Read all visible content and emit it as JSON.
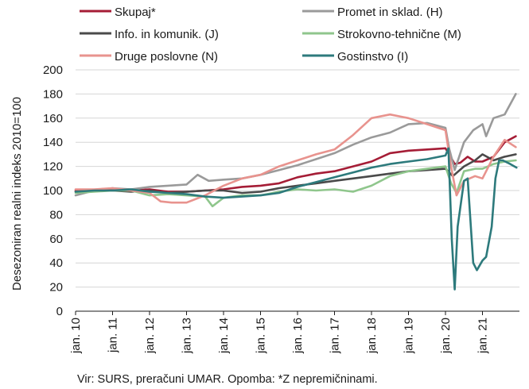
{
  "chart_data": {
    "type": "line",
    "ylabel": "Desezoniran realni indeks 2010=100",
    "ylim": [
      0,
      200
    ],
    "yticks": [
      "0",
      "20",
      "40",
      "60",
      "80",
      "100",
      "120",
      "140",
      "160",
      "180",
      "200"
    ],
    "xlim": [
      2010.0,
      2022.0
    ],
    "xtick_labels": [
      "jan. 10",
      "jan. 11",
      "jan. 12",
      "jan. 13",
      "jan. 14",
      "jan. 15",
      "jan. 16",
      "jan. 17",
      "jan. 18",
      "jan. 19",
      "jan. 20",
      "jan. 21"
    ],
    "grid": true,
    "legend_position": "top",
    "note": "Vir: SURS, preračuni UMAR. Opomba: *Z nepremičninami.",
    "series": [
      {
        "name": "Skupaj*",
        "color": "#a51d36",
        "x": [
          2010.0,
          2010.5,
          2011.0,
          2011.5,
          2012.0,
          2012.5,
          2013.0,
          2013.5,
          2014.0,
          2014.5,
          2015.0,
          2015.5,
          2016.0,
          2016.5,
          2017.0,
          2017.5,
          2018.0,
          2018.5,
          2019.0,
          2019.5,
          2020.0,
          2020.1,
          2020.25,
          2020.4,
          2020.6,
          2020.8,
          2021.0,
          2021.3,
          2021.6,
          2021.9
        ],
        "y": [
          100,
          100,
          101,
          100,
          101,
          99,
          99,
          100,
          101,
          103,
          104,
          106,
          111,
          114,
          116,
          120,
          124,
          131,
          133,
          134,
          135,
          130,
          122,
          123,
          128,
          124,
          124,
          128,
          140,
          145
        ]
      },
      {
        "name": "Promet in sklad. (H)",
        "color": "#9a9a9a",
        "x": [
          2010.0,
          2010.5,
          2011.0,
          2011.5,
          2012.0,
          2012.5,
          2013.0,
          2013.3,
          2013.6,
          2014.0,
          2014.5,
          2015.0,
          2015.5,
          2016.0,
          2016.5,
          2017.0,
          2017.5,
          2018.0,
          2018.5,
          2019.0,
          2019.5,
          2020.0,
          2020.1,
          2020.25,
          2020.5,
          2020.75,
          2021.0,
          2021.1,
          2021.3,
          2021.6,
          2021.9
        ],
        "y": [
          96,
          100,
          102,
          101,
          103,
          104,
          105,
          113,
          108,
          109,
          110,
          113,
          117,
          121,
          126,
          131,
          138,
          144,
          148,
          155,
          156,
          152,
          135,
          117,
          140,
          150,
          155,
          145,
          160,
          163,
          180
        ]
      },
      {
        "name": "Info. in komunik. (J)",
        "color": "#4a4a4a",
        "x": [
          2010.0,
          2010.5,
          2011.0,
          2011.5,
          2012.0,
          2012.5,
          2013.0,
          2013.5,
          2014.0,
          2014.5,
          2015.0,
          2015.5,
          2016.0,
          2016.5,
          2017.0,
          2017.5,
          2018.0,
          2018.5,
          2019.0,
          2019.5,
          2020.0,
          2020.2,
          2020.5,
          2020.8,
          2021.0,
          2021.3,
          2021.6,
          2021.9
        ],
        "y": [
          99,
          100,
          100,
          99,
          100,
          98,
          99,
          100,
          100,
          98,
          99,
          102,
          104,
          106,
          108,
          110,
          112,
          114,
          116,
          117,
          118,
          112,
          120,
          125,
          130,
          125,
          128,
          130
        ]
      },
      {
        "name": "Strokovno-tehnične (M)",
        "color": "#8fc68c",
        "x": [
          2010.0,
          2010.5,
          2011.0,
          2011.5,
          2012.0,
          2012.5,
          2013.0,
          2013.5,
          2013.7,
          2014.0,
          2014.5,
          2015.0,
          2015.5,
          2016.0,
          2016.5,
          2017.0,
          2017.5,
          2018.0,
          2018.5,
          2019.0,
          2019.5,
          2020.0,
          2020.15,
          2020.3,
          2020.5,
          2020.8,
          2021.0,
          2021.3,
          2021.6,
          2021.9
        ],
        "y": [
          98,
          99,
          100,
          100,
          96,
          97,
          96,
          95,
          87,
          94,
          96,
          96,
          99,
          101,
          100,
          101,
          99,
          104,
          112,
          116,
          118,
          120,
          106,
          98,
          116,
          118,
          118,
          122,
          124,
          125
        ]
      },
      {
        "name": "Druge poslovne (N)",
        "color": "#e8938e",
        "x": [
          2010.0,
          2010.5,
          2011.0,
          2011.5,
          2012.0,
          2012.3,
          2012.6,
          2013.0,
          2013.5,
          2014.0,
          2014.5,
          2015.0,
          2015.5,
          2016.0,
          2016.5,
          2017.0,
          2017.5,
          2018.0,
          2018.5,
          2019.0,
          2019.5,
          2020.0,
          2020.15,
          2020.3,
          2020.5,
          2020.8,
          2021.0,
          2021.3,
          2021.6,
          2021.9
        ],
        "y": [
          101,
          101,
          102,
          100,
          98,
          91,
          90,
          90,
          96,
          104,
          110,
          113,
          120,
          125,
          130,
          134,
          146,
          160,
          163,
          160,
          155,
          150,
          120,
          96,
          108,
          112,
          110,
          128,
          142,
          136
        ]
      },
      {
        "name": "Gostinstvo (I)",
        "color": "#2d7a7c",
        "x": [
          2010.0,
          2010.5,
          2011.0,
          2011.5,
          2012.0,
          2012.5,
          2013.0,
          2013.5,
          2014.0,
          2014.5,
          2015.0,
          2015.5,
          2016.0,
          2016.5,
          2017.0,
          2017.5,
          2018.0,
          2018.5,
          2019.0,
          2019.5,
          2020.0,
          2020.08,
          2020.17,
          2020.25,
          2020.33,
          2020.5,
          2020.6,
          2020.75,
          2020.85,
          2021.0,
          2021.1,
          2021.25,
          2021.35,
          2021.45,
          2021.55,
          2021.75,
          2021.92
        ],
        "y": [
          99,
          100,
          100,
          101,
          99,
          98,
          97,
          95,
          94,
          95,
          96,
          98,
          103,
          107,
          111,
          115,
          119,
          122,
          124,
          126,
          129,
          135,
          60,
          18,
          70,
          108,
          110,
          40,
          34,
          42,
          45,
          70,
          110,
          125,
          125,
          122,
          119
        ]
      }
    ]
  }
}
